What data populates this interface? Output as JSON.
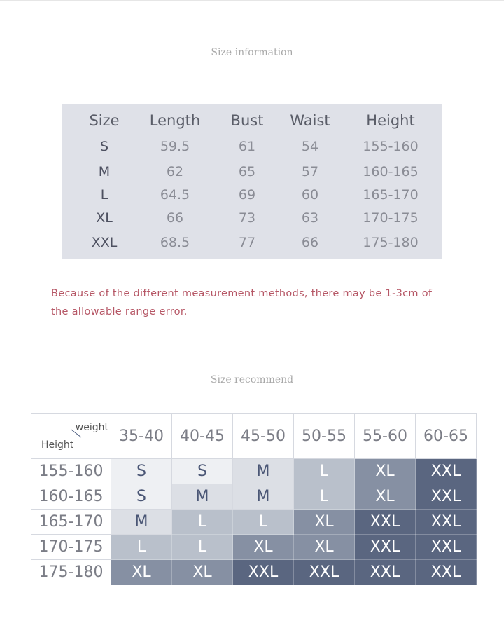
{
  "size_info": {
    "title": "Size information",
    "headers": [
      "Size",
      "Length",
      "Bust",
      "Waist",
      "Height"
    ],
    "rows": [
      [
        "S",
        "59.5",
        "61",
        "54",
        "155-160"
      ],
      [
        "M",
        "62",
        "65",
        "57",
        "160-165"
      ],
      [
        "L",
        "64.5",
        "69",
        "60",
        "165-170"
      ],
      [
        "XL",
        "66",
        "73",
        "63",
        "170-175"
      ],
      [
        "XXL",
        "68.5",
        "77",
        "66",
        "175-180"
      ]
    ]
  },
  "note": "Because of the different measurement methods, there may be 1-3cm of the allowable range error.",
  "recommend": {
    "title": "Size recommend",
    "corner_weight": "weight",
    "corner_height": "Height",
    "weights": [
      "35-40",
      "40-45",
      "45-50",
      "50-55",
      "55-60",
      "60-65"
    ],
    "rows": [
      {
        "height": "155-160",
        "sizes": [
          "S",
          "S",
          "M",
          "L",
          "XL",
          "XXL"
        ]
      },
      {
        "height": "160-165",
        "sizes": [
          "S",
          "M",
          "M",
          "L",
          "XL",
          "XXL"
        ]
      },
      {
        "height": "165-170",
        "sizes": [
          "M",
          "L",
          "L",
          "XL",
          "XXL",
          "XXL"
        ]
      },
      {
        "height": "170-175",
        "sizes": [
          "L",
          "L",
          "XL",
          "XL",
          "XXL",
          "XXL"
        ]
      },
      {
        "height": "175-180",
        "sizes": [
          "XL",
          "XL",
          "XXL",
          "XXL",
          "XXL",
          "XXL"
        ]
      }
    ],
    "size_colors": {
      "S": "#eef0f3",
      "M": "#dcdfe5",
      "L": "#b9c0cb",
      "XL": "#8690a3",
      "XXL": "#5a6680"
    }
  }
}
